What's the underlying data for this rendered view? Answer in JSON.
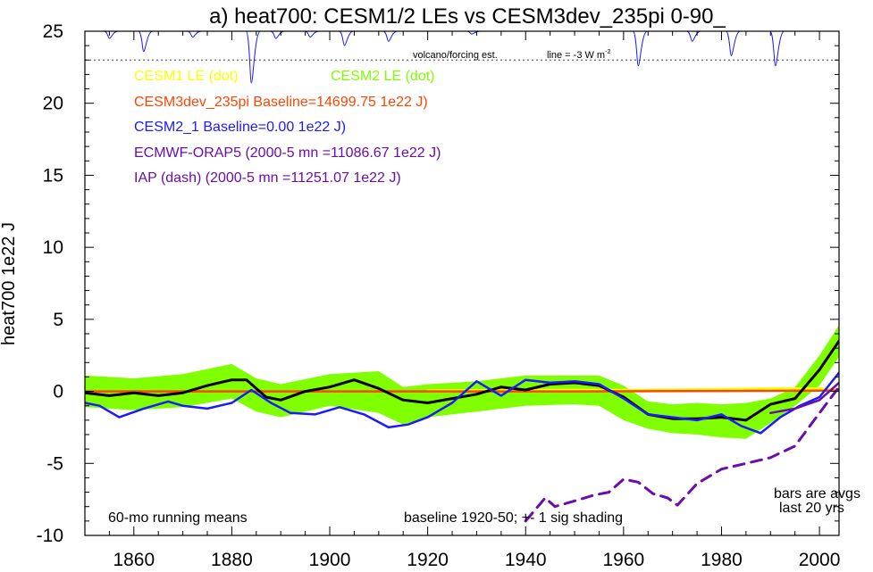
{
  "chart_data": {
    "type": "line",
    "title": "a) heat700: CESM1/2 LEs vs CESM3dev_235pi 0-90_",
    "ylabel": "heat700 1e22 J",
    "xlim": [
      1850,
      2004
    ],
    "ylim": [
      -10,
      25
    ],
    "x_ticks": [
      1860,
      1880,
      1900,
      1920,
      1940,
      1960,
      1980,
      2000
    ],
    "y_ticks": [
      -10,
      -5,
      0,
      5,
      10,
      15,
      20,
      25
    ],
    "legend": [
      {
        "text": "CESM1 LE (dot)",
        "color": "#ffff00"
      },
      {
        "text": "CESM2 LE (dot)",
        "color": "#80ff00"
      },
      {
        "text": "CESM3dev_235pi Baseline=14699.75 1e22 J)",
        "color": "#ff4500"
      },
      {
        "text": "CESM2_1 Baseline=0.00 1e22 J)",
        "color": "#1a1aff"
      },
      {
        "text": "ECMWF-ORAP5 (2000-5 mn =11086.67 1e22 J)",
        "color": "#6a0dad"
      },
      {
        "text": "IAP (dash) (2000-5 mn =11251.07 1e22 J)",
        "color": "#6a0dad"
      }
    ],
    "annotations": {
      "volcano": "volcano/forcing est.",
      "line_label": "line = -3 W m",
      "line_sup": "-2",
      "running": "60-mo running means",
      "baseline": "baseline 1920-50; +- 1 sig shading",
      "bars1": "bars are avgs",
      "bars2": "last 20 yrs"
    },
    "volcano_ref_y": 23,
    "volcano_dips": [
      {
        "x": 1855,
        "depth": 0.5
      },
      {
        "x": 1862,
        "depth": 1.4
      },
      {
        "x": 1872,
        "depth": 0.4
      },
      {
        "x": 1884,
        "depth": 3.6
      },
      {
        "x": 1889,
        "depth": 0.5
      },
      {
        "x": 1896,
        "depth": 0.4
      },
      {
        "x": 1903,
        "depth": 1.0
      },
      {
        "x": 1912,
        "depth": 0.7
      },
      {
        "x": 1929,
        "depth": 0.2
      },
      {
        "x": 1963,
        "depth": 2.4
      },
      {
        "x": 1974,
        "depth": 0.7
      },
      {
        "x": 1982,
        "depth": 1.7
      },
      {
        "x": 1991,
        "depth": 2.4
      }
    ],
    "series": [
      {
        "name": "CESM2 LE (dot)",
        "role": "band",
        "color": "#80ff00",
        "x": [
          1850,
          1860,
          1870,
          1880,
          1885,
          1890,
          1900,
          1910,
          1915,
          1920,
          1930,
          1940,
          1950,
          1955,
          1960,
          1965,
          1970,
          1975,
          1980,
          1985,
          1990,
          1995,
          2000,
          2004
        ],
        "upper": [
          1.1,
          0.9,
          1.2,
          1.9,
          0.9,
          0.5,
          1.2,
          1.4,
          0.3,
          0.5,
          0.7,
          1.1,
          1.1,
          1.1,
          0.4,
          -0.7,
          -0.9,
          -0.8,
          -0.9,
          -0.8,
          -0.5,
          0.3,
          2.5,
          4.6
        ],
        "lower": [
          -1.1,
          -1.3,
          -1.1,
          -0.5,
          -1.4,
          -1.8,
          -1.0,
          -1.5,
          -2.3,
          -1.8,
          -1.4,
          -1.0,
          -0.9,
          -1.0,
          -2.0,
          -2.6,
          -2.9,
          -3.0,
          -3.2,
          -3.3,
          -2.2,
          -1.0,
          0.4,
          2.4
        ]
      },
      {
        "name": "CESM1 LE (dot)",
        "color": "#ffff00",
        "x": [
          1920,
          1940,
          1960,
          1980,
          1990,
          2000,
          2004
        ],
        "y": [
          0.05,
          0.1,
          0.1,
          0.15,
          0.2,
          0.2,
          0.1
        ]
      },
      {
        "name": "CESM3dev_235pi",
        "color": "#ff4500",
        "x": [
          1850,
          1900,
          1950,
          2000,
          2004
        ],
        "y": [
          0.0,
          0.0,
          0.0,
          0.05,
          0.05
        ]
      },
      {
        "name": "CESM2 LE mean",
        "color": "#000000",
        "x": [
          1850,
          1855,
          1860,
          1865,
          1870,
          1875,
          1880,
          1883,
          1887,
          1890,
          1895,
          1900,
          1905,
          1910,
          1915,
          1920,
          1925,
          1930,
          1935,
          1940,
          1945,
          1950,
          1955,
          1960,
          1965,
          1970,
          1975,
          1980,
          1985,
          1990,
          1995,
          2000,
          2004
        ],
        "y": [
          -0.1,
          -0.3,
          -0.1,
          -0.3,
          -0.1,
          0.4,
          0.8,
          0.8,
          -0.4,
          -0.6,
          0.0,
          0.3,
          0.8,
          0.2,
          -0.6,
          -0.8,
          -0.5,
          -0.2,
          0.3,
          0.1,
          0.5,
          0.6,
          0.4,
          -0.4,
          -1.6,
          -1.9,
          -1.9,
          -1.8,
          -2.0,
          -0.9,
          -0.5,
          1.5,
          3.5
        ]
      },
      {
        "name": "CESM2_1",
        "color": "#1a1aff",
        "x": [
          1850,
          1853,
          1857,
          1862,
          1867,
          1870,
          1875,
          1880,
          1884,
          1888,
          1892,
          1897,
          1902,
          1907,
          1912,
          1916,
          1920,
          1925,
          1930,
          1935,
          1940,
          1945,
          1950,
          1955,
          1960,
          1965,
          1970,
          1975,
          1980,
          1984,
          1988,
          1992,
          1996,
          2000,
          2004
        ],
        "y": [
          -0.8,
          -1.0,
          -1.8,
          -1.2,
          -0.7,
          -1.0,
          -1.2,
          -0.8,
          0.1,
          -0.8,
          -1.5,
          -1.6,
          -1.1,
          -1.6,
          -2.5,
          -2.3,
          -1.8,
          -0.8,
          0.7,
          -0.3,
          0.8,
          0.6,
          0.7,
          0.5,
          -0.5,
          -1.6,
          -1.8,
          -2.0,
          -1.6,
          -2.4,
          -2.9,
          -1.8,
          -1.0,
          -0.4,
          1.3
        ]
      },
      {
        "name": "ECMWF-ORAP5",
        "color": "#6a0dad",
        "x": [
          1990,
          1995,
          2000,
          2004
        ],
        "y": [
          -1.5,
          -1.2,
          -0.6,
          0.6
        ]
      },
      {
        "name": "IAP",
        "role": "dash",
        "color": "#6a0dad",
        "x": [
          1940,
          1944,
          1946,
          1950,
          1954,
          1957,
          1960,
          1963,
          1966,
          1969,
          1971,
          1975,
          1980,
          1985,
          1990,
          1995,
          2000,
          2004
        ],
        "y": [
          -9.0,
          -7.4,
          -8.0,
          -7.6,
          -7.2,
          -7.0,
          -6.1,
          -6.3,
          -7.1,
          -7.4,
          -7.9,
          -6.4,
          -5.4,
          -5.0,
          -4.6,
          -3.8,
          -1.5,
          0.3
        ]
      }
    ]
  }
}
